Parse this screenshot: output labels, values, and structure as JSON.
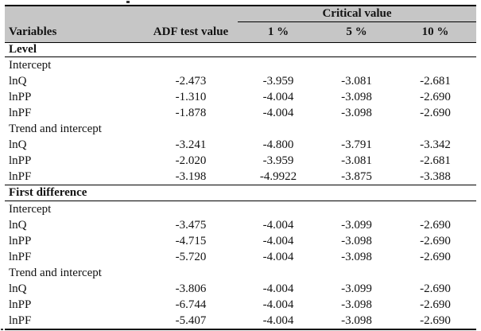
{
  "page": {
    "background_color": "#ffffff",
    "header_background_color": "#c6c6c6",
    "text_color": "#121212",
    "rule_color": "#000000"
  },
  "table": {
    "header": {
      "critical_value_label": "Critical value",
      "columns": {
        "variables": "Variables",
        "adf": "ADF test value",
        "p1": "1 %",
        "p5": "5 %",
        "p10": "10 %"
      }
    },
    "sections": [
      {
        "title": "Level",
        "groups": [
          {
            "label": "Intercept",
            "rows": [
              {
                "variable": "lnQ",
                "adf": "-2.473",
                "c1": "-3.959",
                "c5": "-3.081",
                "c10": "-2.681"
              },
              {
                "variable": "lnPP",
                "adf": "-1.310",
                "c1": "-4.004",
                "c5": "-3.098",
                "c10": "-2.690"
              },
              {
                "variable": "lnPF",
                "adf": "-1.878",
                "c1": "-4.004",
                "c5": "-3.098",
                "c10": "-2.690"
              }
            ]
          },
          {
            "label": "Trend and intercept",
            "rows": [
              {
                "variable": "lnQ",
                "adf": "-3.241",
                "c1": "-4.800",
                "c5": "-3.791",
                "c10": "-3.342"
              },
              {
                "variable": "lnPP",
                "adf": "-2.020",
                "c1": "-3.959",
                "c5": "-3.081",
                "c10": "-2.681"
              },
              {
                "variable": "lnPF",
                "adf": "-3.198",
                "c1": "-4.9922",
                "c5": "-3.875",
                "c10": "-3.388"
              }
            ]
          }
        ]
      },
      {
        "title": "First difference",
        "groups": [
          {
            "label": "Intercept",
            "rows": [
              {
                "variable": "lnQ",
                "adf": "-3.475",
                "c1": "-4.004",
                "c5": "-3.099",
                "c10": "-2.690"
              },
              {
                "variable": "lnPP",
                "adf": "-4.715",
                "c1": "-4.004",
                "c5": "-3.098",
                "c10": "-2.690"
              },
              {
                "variable": "lnPF",
                "adf": "-5.720",
                "c1": "-4.004",
                "c5": "-3.098",
                "c10": "-2.690"
              }
            ]
          },
          {
            "label": "Trend and intercept",
            "rows": [
              {
                "variable": "lnQ",
                "adf": "-3.806",
                "c1": "-4.004",
                "c5": "-3.099",
                "c10": "-2.690"
              },
              {
                "variable": "lnPP",
                "adf": "-6.744",
                "c1": "-4.004",
                "c5": "-3.098",
                "c10": "-2.690"
              },
              {
                "variable": "lnPF",
                "adf": "-5.407",
                "c1": "-4.004",
                "c5": "-3.098",
                "c10": "-2.690"
              }
            ]
          }
        ]
      }
    ]
  }
}
